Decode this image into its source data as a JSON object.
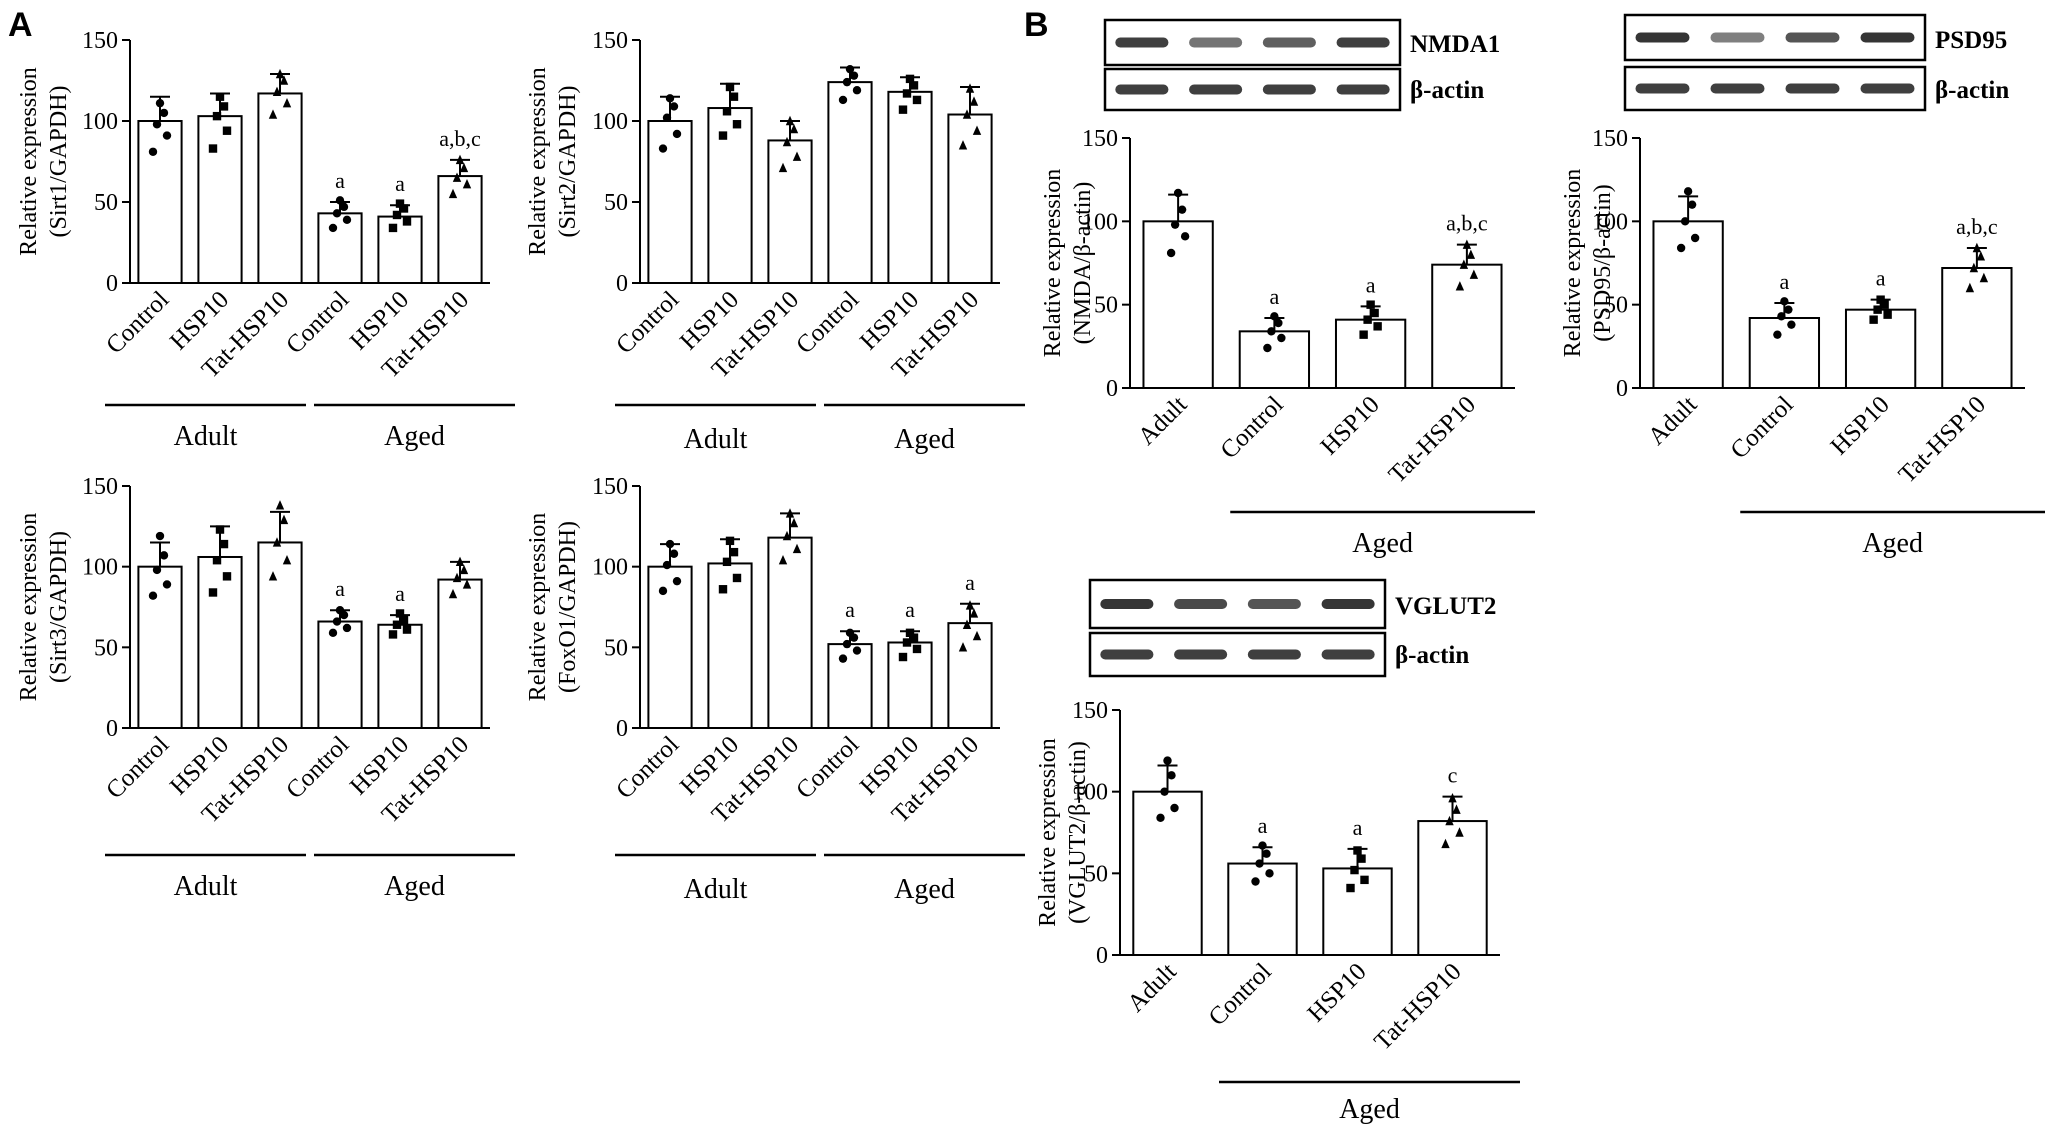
{
  "panel_labels": {
    "A": "A",
    "B": "B"
  },
  "blots": {
    "nmda": {
      "target": "NMDA1",
      "loading": "β-actin"
    },
    "psd95": {
      "target": "PSD95",
      "loading": "β-actin"
    },
    "vglut2": {
      "target": "VGLUT2",
      "loading": "β-actin"
    }
  },
  "chart_data": [
    {
      "id": "sirt1",
      "type": "bar",
      "ylabel": [
        "Relative expression",
        "(Sirt1/GAPDH)"
      ],
      "ylim": [
        0,
        150
      ],
      "yticks": [
        0,
        50,
        100,
        150
      ],
      "categories": [
        "Control",
        "HSP10",
        "Tat-HSP10",
        "Control",
        "HSP10",
        "Tat-HSP10"
      ],
      "values": [
        100,
        103,
        117,
        43,
        41,
        66
      ],
      "errors": [
        15,
        14,
        12,
        7,
        7,
        10
      ],
      "markers": [
        "circle",
        "square",
        "triangle",
        "circle",
        "square",
        "triangle"
      ],
      "points": [
        [
          81,
          91,
          98,
          105,
          111
        ],
        [
          83,
          94,
          103,
          109,
          115
        ],
        [
          104,
          111,
          118,
          125,
          129
        ],
        [
          34,
          39,
          43,
          47,
          51
        ],
        [
          34,
          38,
          42,
          46,
          49
        ],
        [
          55,
          61,
          65,
          71,
          76
        ]
      ],
      "annotations": [
        "",
        "",
        "",
        "a",
        "a",
        "a,b,c"
      ],
      "groups": [
        {
          "label": "Adult",
          "from": 0,
          "to": 2
        },
        {
          "label": "Aged",
          "from": 3,
          "to": 5
        }
      ]
    },
    {
      "id": "sirt2",
      "type": "bar",
      "ylabel": [
        "Relative expression",
        "(Sirt2/GAPDH)"
      ],
      "ylim": [
        0,
        150
      ],
      "yticks": [
        0,
        50,
        100,
        150
      ],
      "categories": [
        "Control",
        "HSP10",
        "Tat-HSP10",
        "Control",
        "HSP10",
        "Tat-HSP10"
      ],
      "values": [
        100,
        108,
        88,
        124,
        118,
        104
      ],
      "errors": [
        15,
        15,
        12,
        9,
        9,
        17
      ],
      "markers": [
        "circle",
        "square",
        "triangle",
        "circle",
        "square",
        "triangle"
      ],
      "points": [
        [
          83,
          92,
          102,
          109,
          114
        ],
        [
          91,
          98,
          106,
          115,
          121
        ],
        [
          71,
          78,
          87,
          95,
          100
        ],
        [
          113,
          119,
          124,
          128,
          132
        ],
        [
          107,
          113,
          117,
          122,
          126
        ],
        [
          85,
          94,
          104,
          112,
          120
        ]
      ],
      "annotations": [
        "",
        "",
        "",
        "",
        "",
        ""
      ],
      "groups": [
        {
          "label": "Adult",
          "from": 0,
          "to": 2
        },
        {
          "label": "Aged",
          "from": 3,
          "to": 5
        }
      ]
    },
    {
      "id": "sirt3",
      "type": "bar",
      "ylabel": [
        "Relative expression",
        "(Sirt3/GAPDH)"
      ],
      "ylim": [
        0,
        150
      ],
      "yticks": [
        0,
        50,
        100,
        150
      ],
      "categories": [
        "Control",
        "HSP10",
        "Tat-HSP10",
        "Control",
        "HSP10",
        "Tat-HSP10"
      ],
      "values": [
        100,
        106,
        115,
        66,
        64,
        92
      ],
      "errors": [
        15,
        19,
        19,
        7,
        6,
        11
      ],
      "markers": [
        "circle",
        "square",
        "triangle",
        "circle",
        "square",
        "triangle"
      ],
      "points": [
        [
          82,
          89,
          98,
          107,
          119
        ],
        [
          84,
          94,
          104,
          114,
          123
        ],
        [
          94,
          104,
          115,
          129,
          138
        ],
        [
          59,
          62,
          66,
          70,
          73
        ],
        [
          58,
          61,
          64,
          67,
          71
        ],
        [
          83,
          89,
          93,
          98,
          103
        ]
      ],
      "annotations": [
        "",
        "",
        "",
        "a",
        "a",
        ""
      ],
      "groups": [
        {
          "label": "Adult",
          "from": 0,
          "to": 2
        },
        {
          "label": "Aged",
          "from": 3,
          "to": 5
        }
      ]
    },
    {
      "id": "foxo1",
      "type": "bar",
      "ylabel": [
        "Relative expression",
        "(FoxO1/GAPDH)"
      ],
      "ylim": [
        0,
        150
      ],
      "yticks": [
        0,
        50,
        100,
        150
      ],
      "categories": [
        "Control",
        "HSP10",
        "Tat-HSP10",
        "Control",
        "HSP10",
        "Tat-HSP10"
      ],
      "values": [
        100,
        102,
        118,
        52,
        53,
        65
      ],
      "errors": [
        14,
        15,
        15,
        8,
        7,
        12
      ],
      "markers": [
        "circle",
        "square",
        "triangle",
        "circle",
        "square",
        "triangle"
      ],
      "points": [
        [
          85,
          91,
          101,
          108,
          114
        ],
        [
          86,
          93,
          103,
          109,
          116
        ],
        [
          104,
          111,
          119,
          127,
          133
        ],
        [
          43,
          48,
          52,
          56,
          59
        ],
        [
          44,
          49,
          53,
          56,
          59
        ],
        [
          50,
          57,
          64,
          71,
          76
        ]
      ],
      "annotations": [
        "",
        "",
        "",
        "a",
        "a",
        "a"
      ],
      "groups": [
        {
          "label": "Adult",
          "from": 0,
          "to": 2
        },
        {
          "label": "Aged",
          "from": 3,
          "to": 5
        }
      ]
    },
    {
      "id": "nmda",
      "type": "bar",
      "ylabel": [
        "Relative expression",
        "(NMDA/β-actin)"
      ],
      "ylim": [
        0,
        150
      ],
      "yticks": [
        0,
        50,
        100,
        150
      ],
      "categories": [
        "Adult",
        "Control",
        "HSP10",
        "Tat-HSP10"
      ],
      "values": [
        100,
        34,
        41,
        74
      ],
      "errors": [
        16,
        8,
        8,
        12
      ],
      "markers": [
        "circle",
        "circle",
        "square",
        "triangle"
      ],
      "points": [
        [
          81,
          91,
          98,
          107,
          117
        ],
        [
          24,
          30,
          34,
          39,
          43
        ],
        [
          32,
          37,
          41,
          45,
          50
        ],
        [
          61,
          68,
          74,
          80,
          86
        ]
      ],
      "annotations": [
        "",
        "a",
        "a",
        "a,b,c"
      ],
      "groups": [
        {
          "label": "Aged",
          "from": 1,
          "to": 3
        }
      ]
    },
    {
      "id": "psd95",
      "type": "bar",
      "ylabel": [
        "Relative expression",
        "(PSD95/β-actin)"
      ],
      "ylim": [
        0,
        150
      ],
      "yticks": [
        0,
        50,
        100,
        150
      ],
      "categories": [
        "Adult",
        "Control",
        "HSP10",
        "Tat-HSP10"
      ],
      "values": [
        100,
        42,
        47,
        72
      ],
      "errors": [
        15,
        9,
        6,
        12
      ],
      "markers": [
        "circle",
        "circle",
        "square",
        "triangle"
      ],
      "points": [
        [
          84,
          90,
          100,
          110,
          118
        ],
        [
          32,
          38,
          43,
          47,
          52
        ],
        [
          41,
          44,
          47,
          50,
          53
        ],
        [
          60,
          66,
          72,
          79,
          84
        ]
      ],
      "annotations": [
        "",
        "a",
        "a",
        "a,b,c"
      ],
      "groups": [
        {
          "label": "Aged",
          "from": 1,
          "to": 3
        }
      ]
    },
    {
      "id": "vglut2",
      "type": "bar",
      "ylabel": [
        "Relative expression",
        "(VGLUT2/β-actin)"
      ],
      "ylim": [
        0,
        150
      ],
      "yticks": [
        0,
        50,
        100,
        150
      ],
      "categories": [
        "Adult",
        "Control",
        "HSP10",
        "Tat-HSP10"
      ],
      "values": [
        100,
        56,
        53,
        82
      ],
      "errors": [
        16,
        10,
        12,
        15
      ],
      "markers": [
        "circle",
        "circle",
        "square",
        "triangle"
      ],
      "points": [
        [
          84,
          90,
          100,
          110,
          119
        ],
        [
          45,
          50,
          56,
          62,
          67
        ],
        [
          41,
          46,
          52,
          59,
          64
        ],
        [
          68,
          75,
          82,
          89,
          96
        ]
      ],
      "annotations": [
        "",
        "a",
        "a",
        "c"
      ],
      "groups": [
        {
          "label": "Aged",
          "from": 1,
          "to": 3
        }
      ]
    }
  ]
}
